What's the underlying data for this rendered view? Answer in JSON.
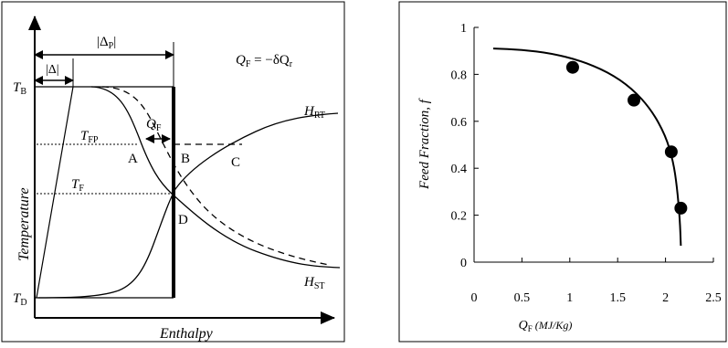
{
  "left_diagram": {
    "formula": "Q",
    "formula_sub": "F",
    "formula_rest": " = −δQ",
    "formula_rest_sub": "r",
    "delta_p_label": "|Δ",
    "delta_p_sub": "P",
    "delta_p_close": "|",
    "delta_label": "|Δ|",
    "tb_label": "T",
    "tb_sub": "B",
    "td_label": "T",
    "td_sub": "D",
    "tfp_label": "T",
    "tfp_sub": "FP",
    "tf_label": "T",
    "tf_sub": "F",
    "qf_label": "Q",
    "qf_sub": "F",
    "hrt_label": "H",
    "hrt_sub": "RT",
    "hst_label": "H",
    "hst_sub": "ST",
    "point_a": "A",
    "point_b": "B",
    "point_c": "C",
    "point_d": "D",
    "y_axis_label": "Temperature",
    "x_axis_label": "Enthalpy"
  },
  "chart_data": {
    "type": "scatter",
    "ylabel": "Feed Fraction, f",
    "xlabel_main": "Q",
    "xlabel_sub": "F",
    "xlabel_unit": " (MJ/Kg)",
    "xlim": [
      0,
      2.5
    ],
    "ylim": [
      0,
      1
    ],
    "x_ticks": [
      "0",
      "0.5",
      "1",
      "1.5",
      "2",
      "2.5"
    ],
    "y_ticks": [
      "0",
      "0.2",
      "0.4",
      "0.6",
      "0.8",
      "1"
    ],
    "points": [
      {
        "x": 1.03,
        "y": 0.83
      },
      {
        "x": 1.67,
        "y": 0.69
      },
      {
        "x": 2.06,
        "y": 0.47
      },
      {
        "x": 2.16,
        "y": 0.23
      }
    ],
    "fit_curve": [
      {
        "x": 0.2,
        "y": 0.91
      },
      {
        "x": 0.5,
        "y": 0.905
      },
      {
        "x": 0.8,
        "y": 0.89
      },
      {
        "x": 1.1,
        "y": 0.86
      },
      {
        "x": 1.4,
        "y": 0.81
      },
      {
        "x": 1.65,
        "y": 0.74
      },
      {
        "x": 1.85,
        "y": 0.65
      },
      {
        "x": 2.0,
        "y": 0.54
      },
      {
        "x": 2.08,
        "y": 0.43
      },
      {
        "x": 2.12,
        "y": 0.32
      },
      {
        "x": 2.15,
        "y": 0.18
      },
      {
        "x": 2.16,
        "y": 0.07
      }
    ]
  }
}
